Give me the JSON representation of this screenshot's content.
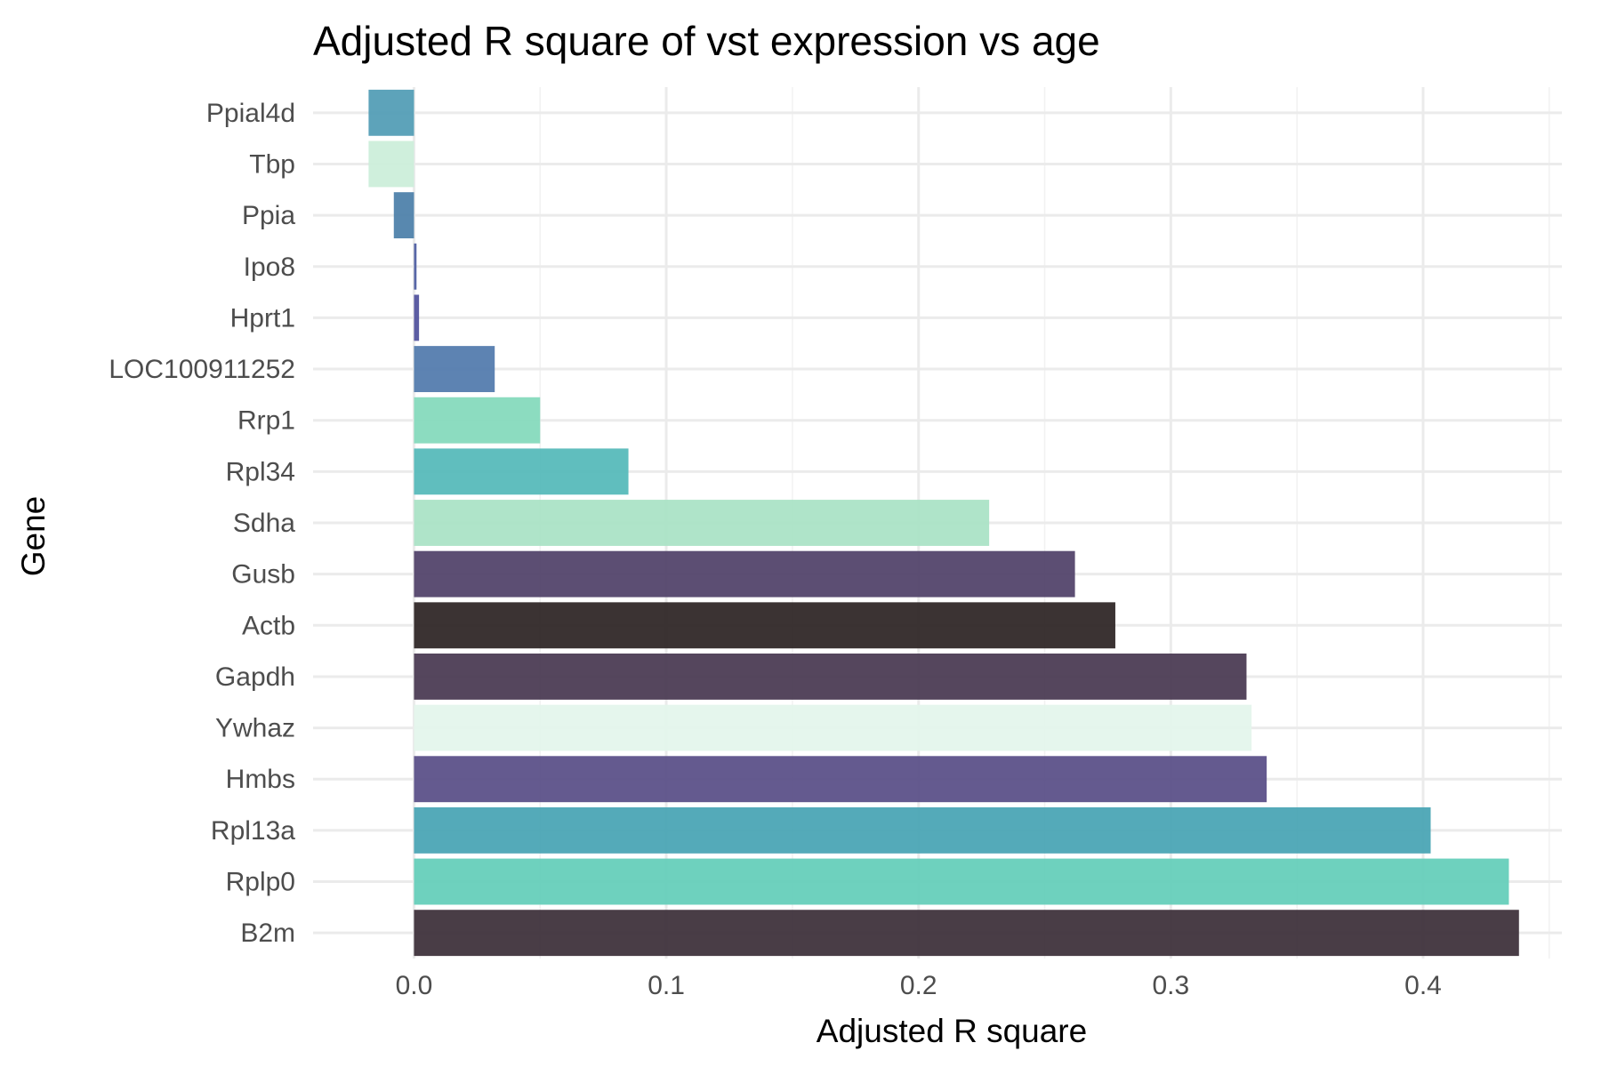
{
  "chart_data": {
    "type": "bar",
    "orientation": "horizontal",
    "title": "Adjusted R square of vst expression vs age",
    "xlabel": "Adjusted R square",
    "ylabel": "Gene",
    "xlim": [
      -0.04,
      0.455
    ],
    "x_ticks": [
      0.0,
      0.1,
      0.2,
      0.3,
      0.4
    ],
    "x_tick_labels": [
      "0.0",
      "0.1",
      "0.2",
      "0.3",
      "0.4"
    ],
    "grid": true,
    "legend": "none",
    "categories": [
      "Ppial4d",
      "Tbp",
      "Ppia",
      "Ipo8",
      "Hprt1",
      "LOC100911252",
      "Rrp1",
      "Rpl34",
      "Sdha",
      "Gusb",
      "Actb",
      "Gapdh",
      "Ywhaz",
      "Hmbs",
      "Rpl13a",
      "Rplp0",
      "B2m"
    ],
    "values": [
      -0.018,
      -0.018,
      -0.008,
      0.001,
      0.002,
      0.032,
      0.05,
      0.085,
      0.228,
      0.262,
      0.278,
      0.33,
      0.332,
      0.338,
      0.403,
      0.434,
      0.438
    ],
    "colors": [
      "#4f9bb4",
      "#cbeed9",
      "#4a7ea8",
      "#4a5aa0",
      "#4e4f9b",
      "#4f78ab",
      "#82d9bb",
      "#52b8b8",
      "#a8e2c4",
      "#4e3f67",
      "#2a2222",
      "#47364f",
      "#e3f5eb",
      "#574c85",
      "#45a3b3",
      "#62cdb9",
      "#3a2c36"
    ]
  }
}
